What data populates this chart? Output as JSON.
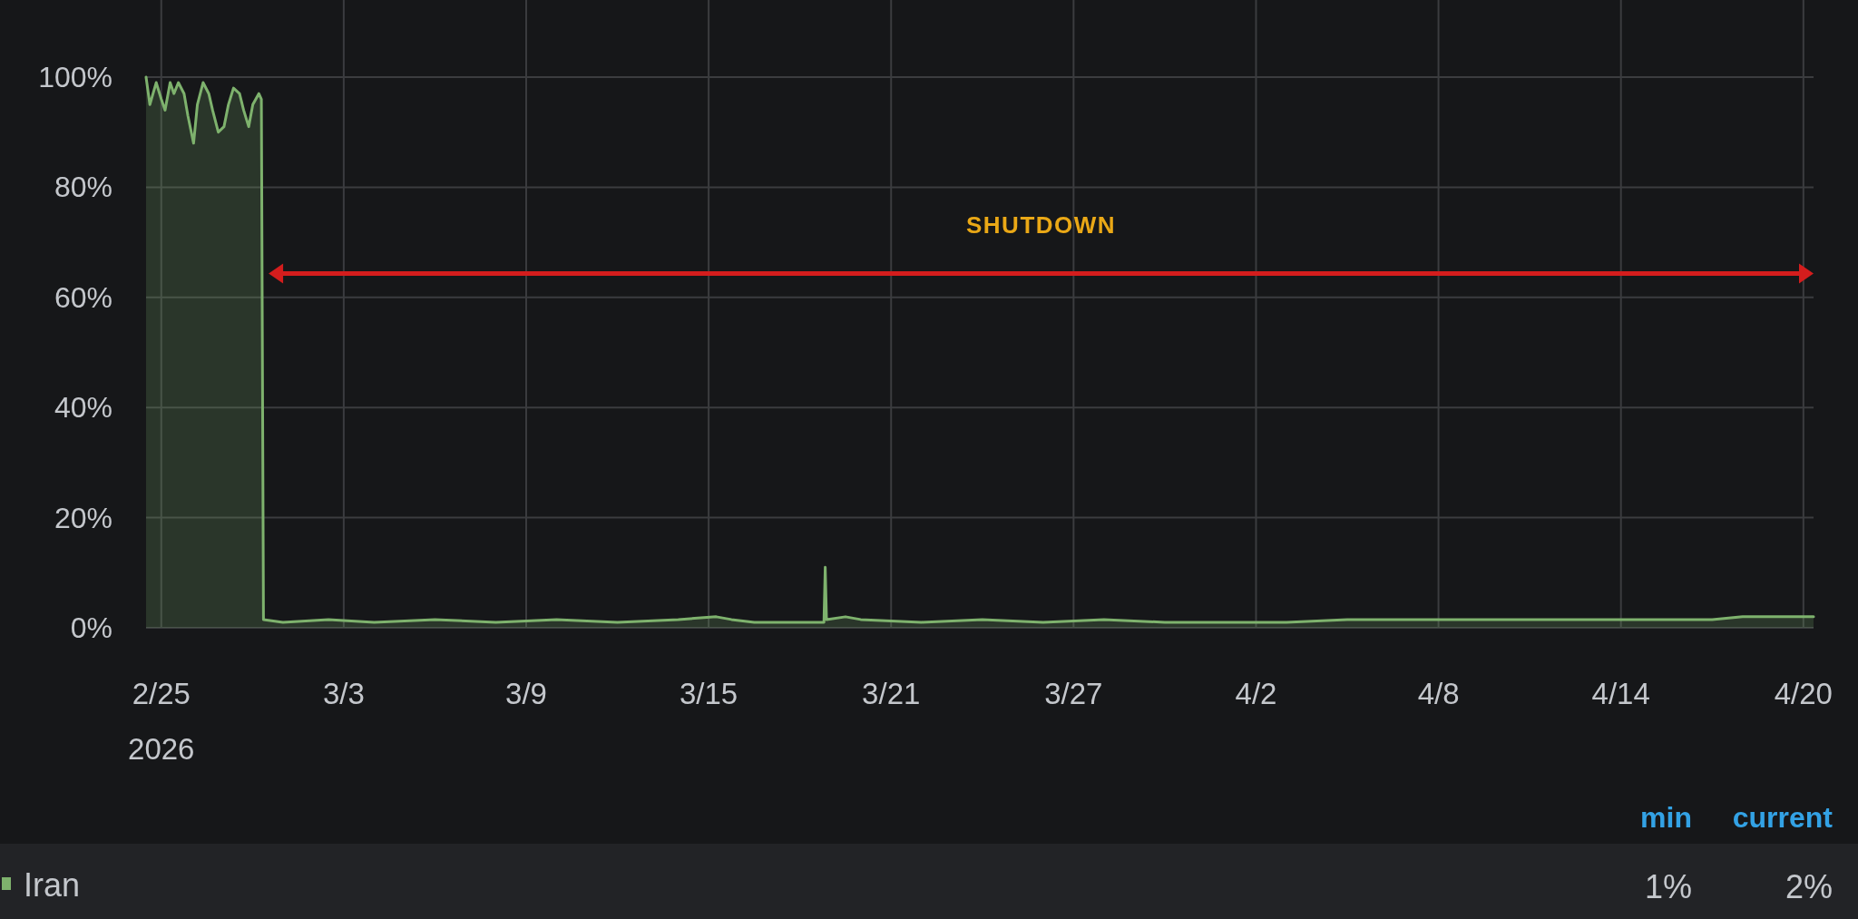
{
  "chart_data": {
    "type": "area",
    "x": [
      "2026-02-24T12:00",
      "2026-02-24T15:00",
      "2026-02-24T20:00",
      "2026-02-25T00:00",
      "2026-02-25T03:00",
      "2026-02-25T07:00",
      "2026-02-25T10:00",
      "2026-02-25T13:30",
      "2026-02-25T18:00",
      "2026-02-25T21:00",
      "2026-02-26T01:30",
      "2026-02-26T04:30",
      "2026-02-26T09:00",
      "2026-02-26T13:30",
      "2026-02-26T16:30",
      "2026-02-26T21:00",
      "2026-02-27T01:30",
      "2026-02-27T05:00",
      "2026-02-27T09:00",
      "2026-02-27T13:45",
      "2026-02-27T17:00",
      "2026-02-27T21:00",
      "2026-02-28T00:15",
      "2026-02-28T05:00",
      "2026-02-28T07:00",
      "2026-02-28T08:40",
      "2026-03-01",
      "2026-03-02T12:00",
      "2026-03-04",
      "2026-03-06",
      "2026-03-08",
      "2026-03-10",
      "2026-03-12",
      "2026-03-14",
      "2026-03-15T06:00",
      "2026-03-15T18:00",
      "2026-03-16T12:00",
      "2026-03-18T19:00",
      "2026-03-18T20:00",
      "2026-03-18T21:00",
      "2026-03-19T12:00",
      "2026-03-20",
      "2026-03-22",
      "2026-03-24",
      "2026-03-26",
      "2026-03-28",
      "2026-03-30",
      "2026-04-01",
      "2026-04-03",
      "2026-04-05",
      "2026-04-07",
      "2026-04-09",
      "2026-04-11",
      "2026-04-13",
      "2026-04-15",
      "2026-04-17",
      "2026-04-18",
      "2026-04-19",
      "2026-04-20T08:00"
    ],
    "series": [
      {
        "name": "Iran",
        "color": "#7eb26d",
        "values": [
          100,
          95,
          99,
          96,
          94,
          99,
          97,
          99,
          97,
          93,
          88,
          95,
          99,
          97,
          94,
          90,
          91,
          95,
          98,
          97,
          94,
          91,
          95,
          97,
          96,
          1.5,
          1,
          1.5,
          1,
          1.5,
          1,
          1.5,
          1,
          1.5,
          2,
          1.5,
          1,
          1,
          11,
          1.5,
          2,
          1.5,
          1,
          1.5,
          1,
          1.5,
          1,
          1,
          1,
          1.5,
          1.5,
          1.5,
          1.5,
          1.5,
          1.5,
          1.5,
          2,
          2,
          2
        ]
      }
    ],
    "xlim": [
      "2026-02-24T12:00",
      "2026-04-20T08:00"
    ],
    "xticks": [
      {
        "value": "2026-02-25",
        "label": "2/25\n2026"
      },
      {
        "value": "2026-03-03",
        "label": "3/3"
      },
      {
        "value": "2026-03-09",
        "label": "3/9"
      },
      {
        "value": "2026-03-15",
        "label": "3/15"
      },
      {
        "value": "2026-03-21",
        "label": "3/21"
      },
      {
        "value": "2026-03-27",
        "label": "3/27"
      },
      {
        "value": "2026-04-02",
        "label": "4/2"
      },
      {
        "value": "2026-04-08",
        "label": "4/8"
      },
      {
        "value": "2026-04-14",
        "label": "4/14"
      },
      {
        "value": "2026-04-20",
        "label": "4/20"
      }
    ],
    "ylim": [
      0,
      114
    ],
    "yticks": [
      {
        "value": 0,
        "label": "0%"
      },
      {
        "value": 20,
        "label": "20%"
      },
      {
        "value": 40,
        "label": "40%"
      },
      {
        "value": 60,
        "label": "60%"
      },
      {
        "value": 80,
        "label": "80%"
      },
      {
        "value": 100,
        "label": "100%"
      }
    ],
    "grid": true,
    "legend": "bottom",
    "annotations": [
      "SHUTDOWN",
      "min",
      "current",
      "1%",
      "2%"
    ]
  }
}
